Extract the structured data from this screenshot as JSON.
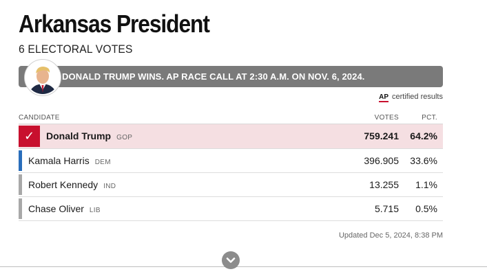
{
  "header": {
    "title": "Arkansas President",
    "subtitle": "6 ELECTORAL VOTES"
  },
  "banner": {
    "text": "DONALD TRUMP WINS. AP RACE CALL AT 2:30 A.M. ON NOV. 6, 2024.",
    "color": "#7a7a7a"
  },
  "ap": {
    "logo": "AP",
    "label": "certified results"
  },
  "table": {
    "headers": {
      "candidate": "CANDIDATE",
      "votes": "VOTES",
      "pct": "PCT."
    },
    "rows": [
      {
        "name": "Donald Trump",
        "party": "GOP",
        "votes": "759.241",
        "pct": "64.2%",
        "winner": true,
        "color": "#c8102e"
      },
      {
        "name": "Kamala Harris",
        "party": "DEM",
        "votes": "396.905",
        "pct": "33.6%",
        "winner": false,
        "color": "#2a6ebb"
      },
      {
        "name": "Robert Kennedy",
        "party": "IND",
        "votes": "13.255",
        "pct": "1.1%",
        "winner": false,
        "color": "#a8a8a8"
      },
      {
        "name": "Chase Oliver",
        "party": "LIB",
        "votes": "5.715",
        "pct": "0.5%",
        "winner": false,
        "color": "#a8a8a8"
      }
    ]
  },
  "updated": "Updated Dec 5, 2024, 8:38 PM",
  "icons": {
    "check": "checkmark-icon",
    "expand": "chevron-down-icon",
    "avatar": "candidate-avatar"
  }
}
